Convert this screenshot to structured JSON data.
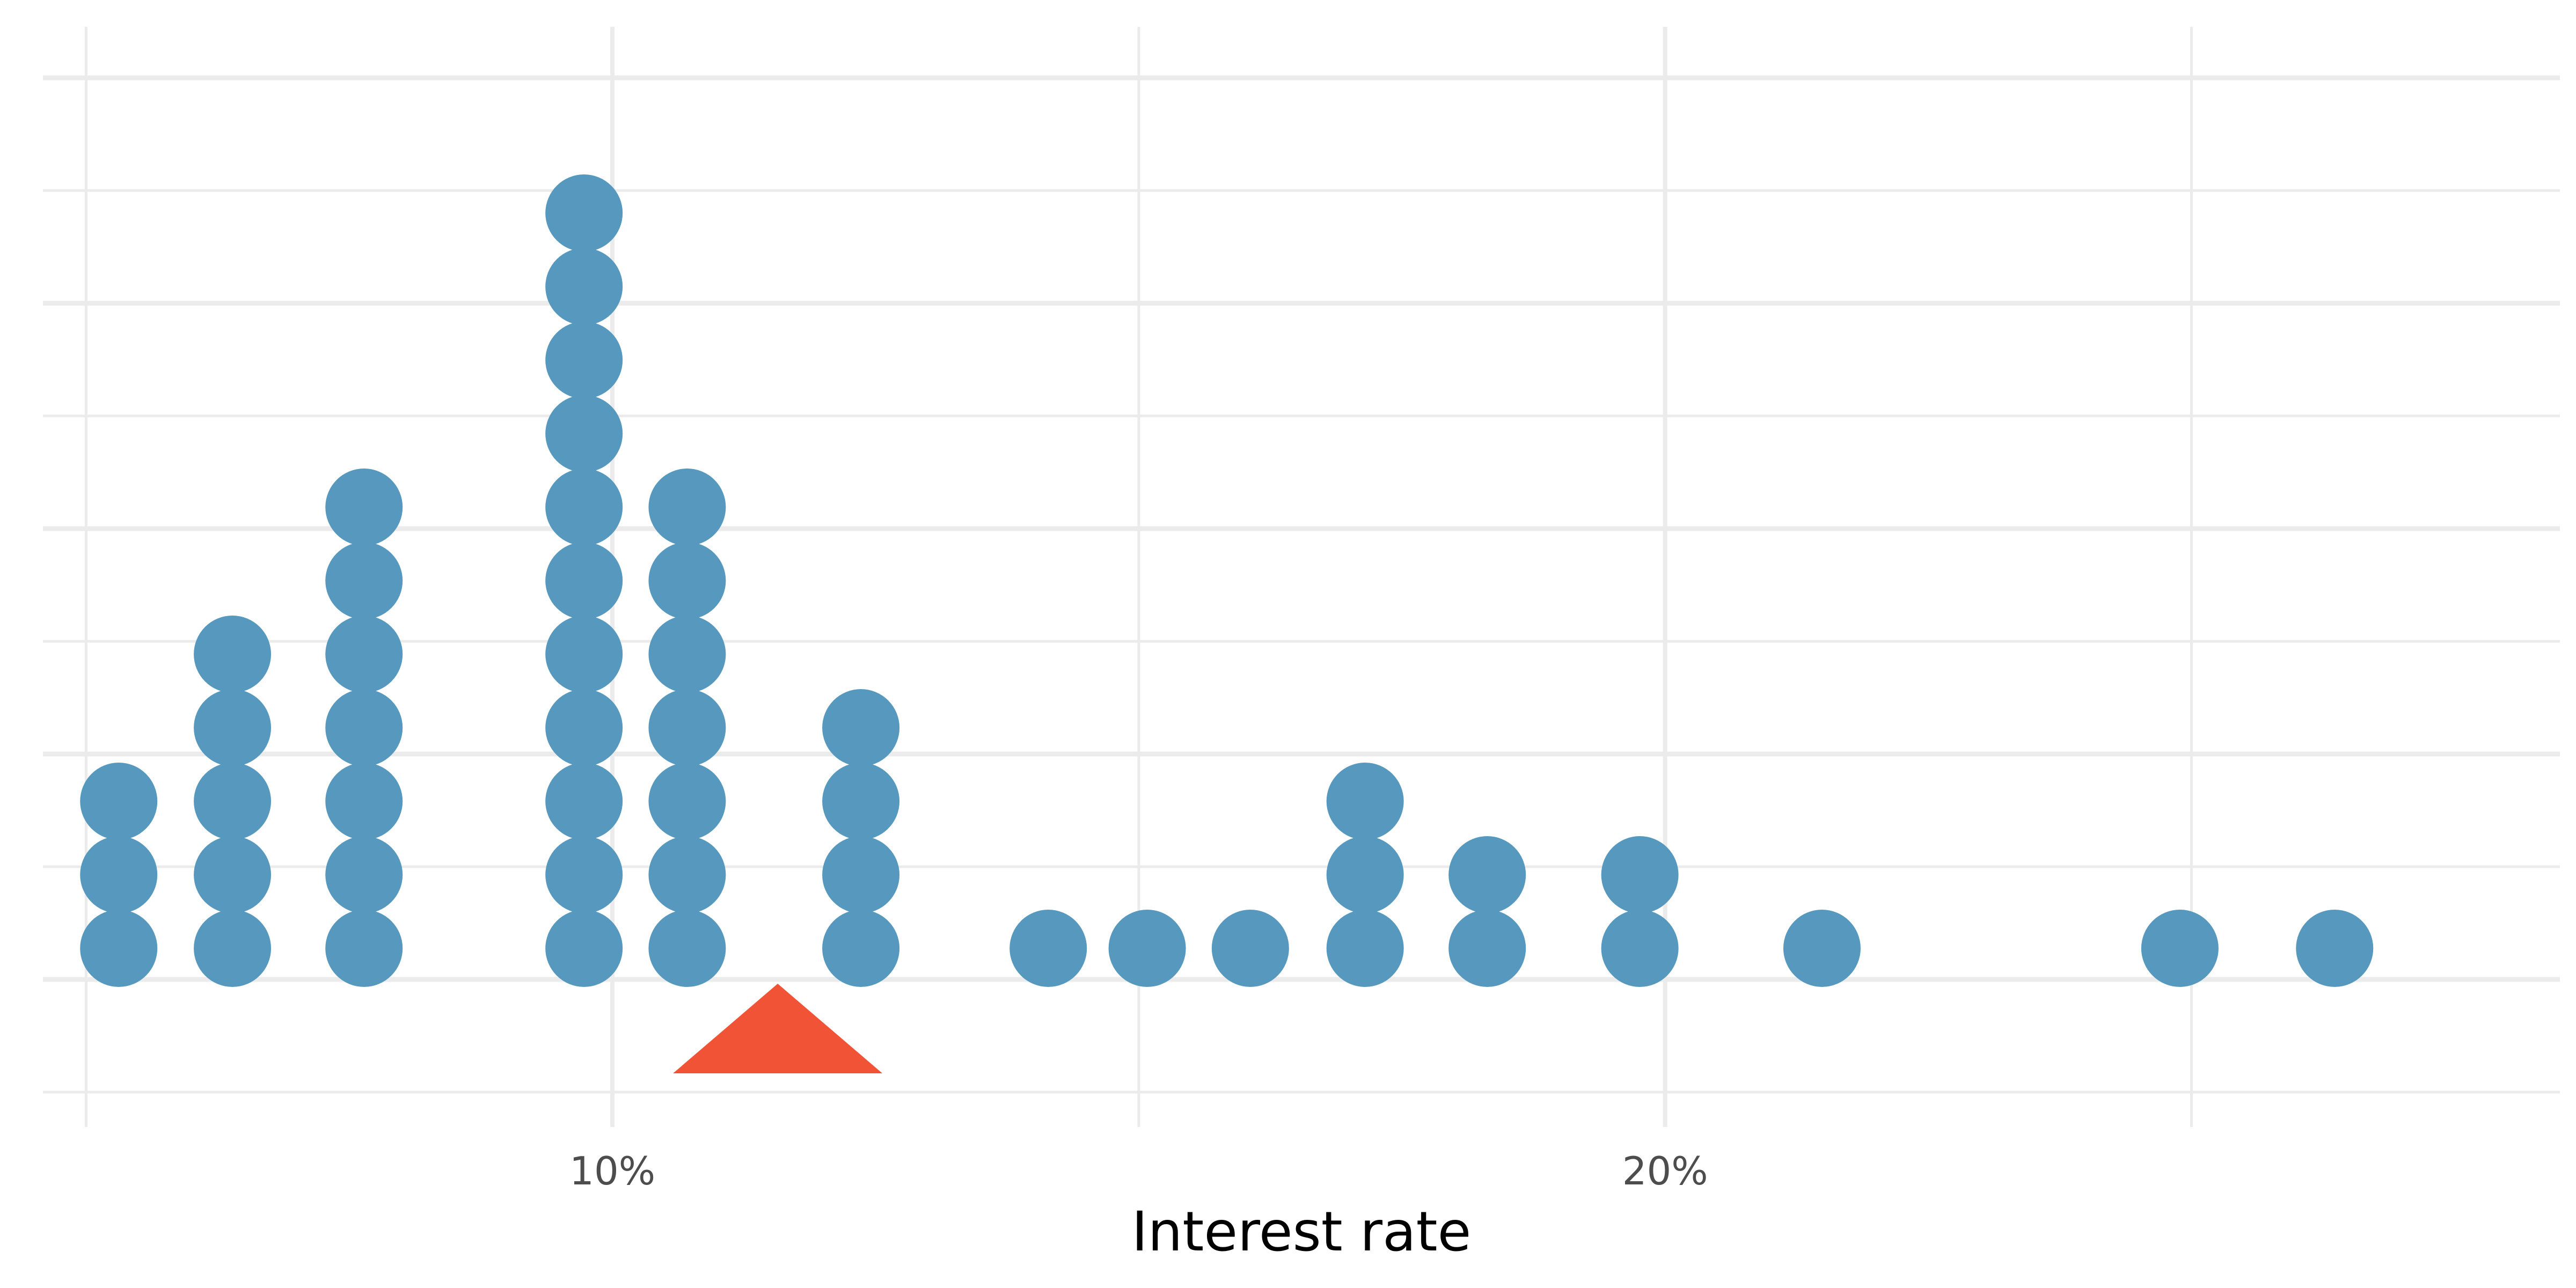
{
  "chart_data": {
    "type": "scatter",
    "subtype": "dot-plot",
    "title": "",
    "xlabel": "Interest rate",
    "ylabel": "",
    "xlim": [
      4.59,
      28.5
    ],
    "x_ticks": [
      {
        "value": 10,
        "label": "10%"
      },
      {
        "value": 20,
        "label": "20%"
      }
    ],
    "x_minor_gridlines": [
      5,
      15,
      25
    ],
    "grid": true,
    "legend": "none",
    "dot_color": "#5799be",
    "mean_marker": {
      "value": 11.57,
      "shape": "triangle",
      "color": "#f05336"
    },
    "stacks": [
      {
        "x": 5.31,
        "count": 3
      },
      {
        "x": 6.39,
        "count": 5
      },
      {
        "x": 7.64,
        "count": 7
      },
      {
        "x": 9.73,
        "count": 11
      },
      {
        "x": 10.71,
        "count": 7
      },
      {
        "x": 12.36,
        "count": 4
      },
      {
        "x": 14.14,
        "count": 1
      },
      {
        "x": 15.08,
        "count": 1
      },
      {
        "x": 16.06,
        "count": 1
      },
      {
        "x": 17.15,
        "count": 3
      },
      {
        "x": 18.31,
        "count": 2
      },
      {
        "x": 19.76,
        "count": 2
      },
      {
        "x": 21.49,
        "count": 1
      },
      {
        "x": 24.89,
        "count": 1
      },
      {
        "x": 26.36,
        "count": 1
      }
    ]
  }
}
